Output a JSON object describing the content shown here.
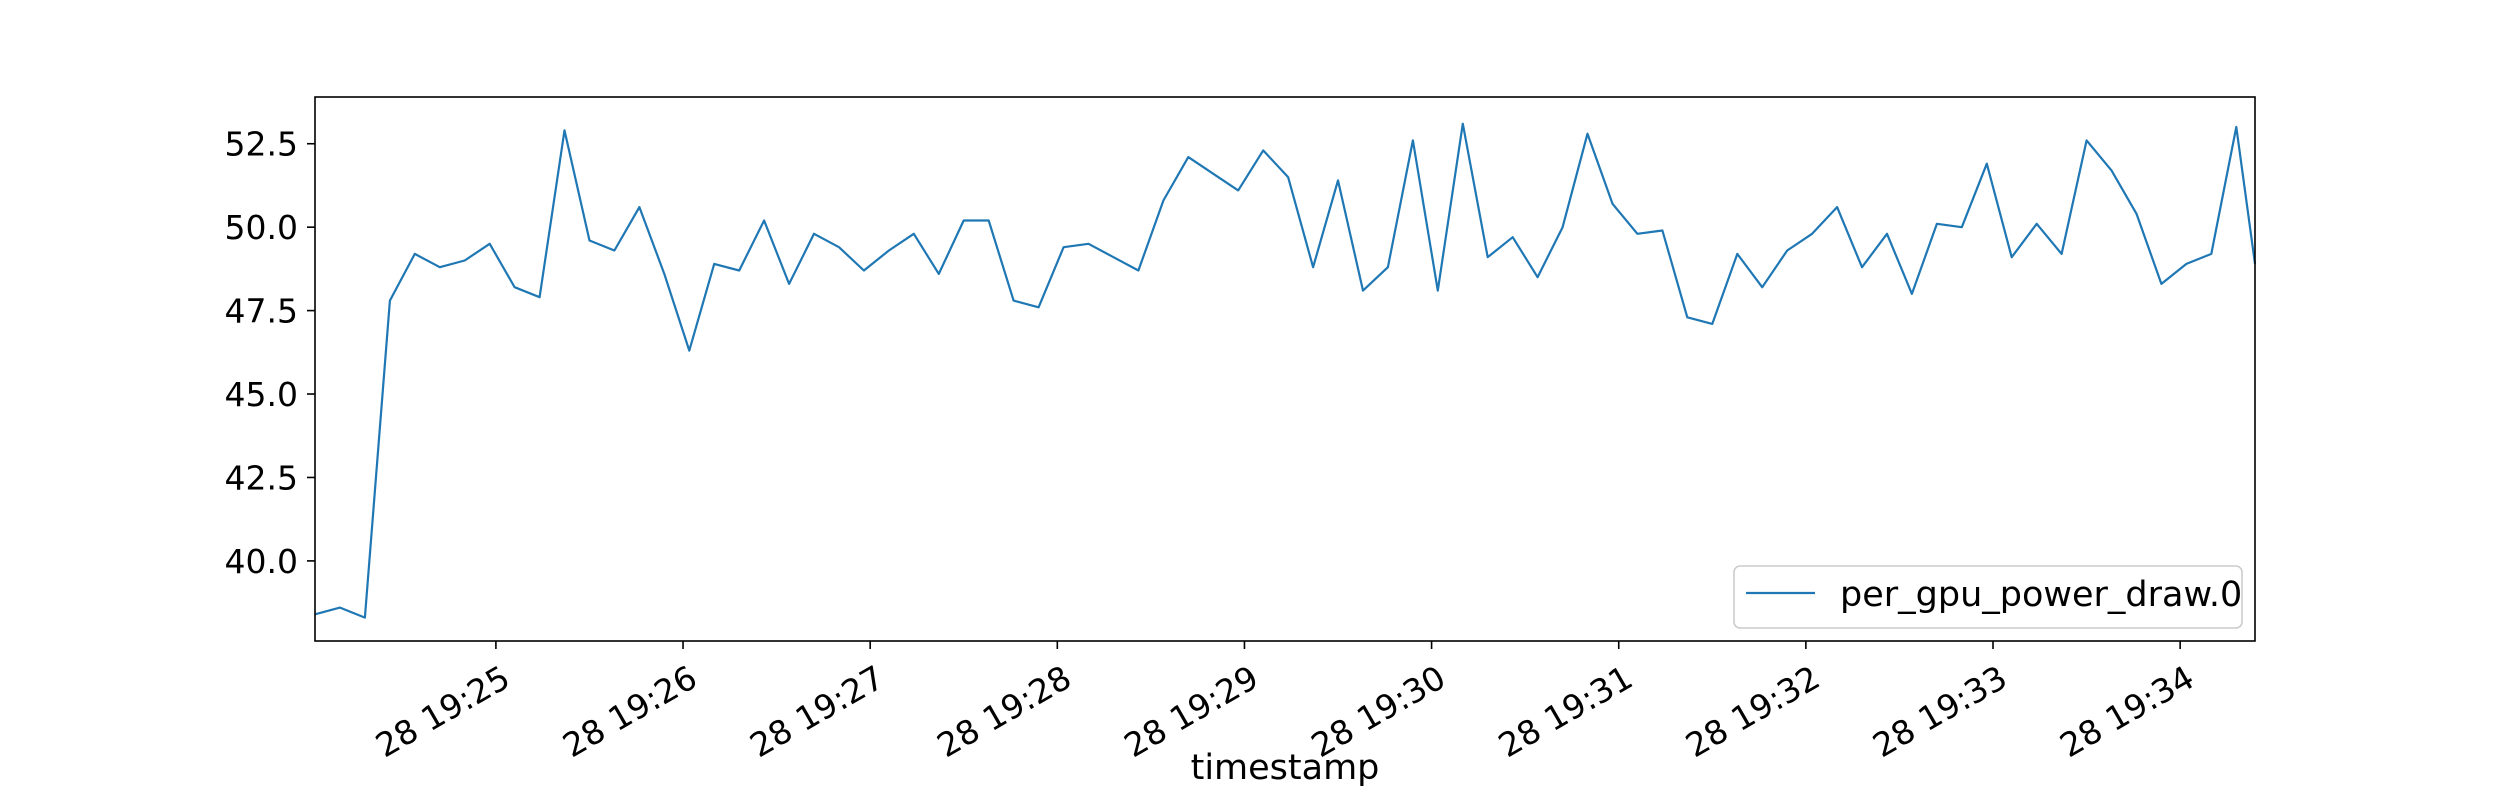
{
  "chart_data": {
    "type": "line",
    "title": "",
    "xlabel": "timestamp",
    "ylabel": "",
    "x_tick_labels": [
      "28 19:25",
      "28 19:26",
      "28 19:27",
      "28 19:28",
      "28 19:29",
      "28 19:30",
      "28 19:31",
      "28 19:32",
      "28 19:33",
      "28 19:34"
    ],
    "y_tick_labels": [
      "40.0",
      "42.5",
      "45.0",
      "47.5",
      "50.0",
      "52.5"
    ],
    "y_ticks": [
      40.0,
      42.5,
      45.0,
      47.5,
      50.0,
      52.5
    ],
    "xlim": [
      "19:24:02",
      "19:34:24"
    ],
    "ylim": [
      37.6,
      53.9
    ],
    "legend": "lower-right",
    "grid": false,
    "series": [
      {
        "name": "per_gpu_power_draw.0",
        "color": "#1f77b4",
        "x": [
          "19:24:02",
          "19:24:10",
          "19:24:18",
          "19:24:26",
          "19:24:34",
          "19:24:42",
          "19:24:50",
          "19:24:58",
          "19:25:06",
          "19:25:14",
          "19:25:22",
          "19:25:30",
          "19:25:38",
          "19:25:46",
          "19:25:54",
          "19:26:02",
          "19:26:10",
          "19:26:18",
          "19:26:26",
          "19:26:34",
          "19:26:42",
          "19:26:50",
          "19:26:58",
          "19:27:06",
          "19:27:14",
          "19:27:22",
          "19:27:30",
          "19:27:38",
          "19:27:46",
          "19:27:54",
          "19:28:02",
          "19:28:10",
          "19:28:18",
          "19:28:26",
          "19:28:34",
          "19:28:42",
          "19:28:50",
          "19:28:58",
          "19:29:06",
          "19:29:14",
          "19:29:22",
          "19:29:30",
          "19:29:38",
          "19:29:46",
          "19:29:54",
          "19:30:02",
          "19:30:10",
          "19:30:18",
          "19:30:26",
          "19:30:34",
          "19:30:42",
          "19:30:50",
          "19:30:58",
          "19:31:06",
          "19:31:14",
          "19:31:22",
          "19:31:30",
          "19:31:38",
          "19:31:46",
          "19:31:54",
          "19:32:02",
          "19:32:10",
          "19:32:18",
          "19:32:26",
          "19:32:34",
          "19:32:42",
          "19:32:50",
          "19:32:58",
          "19:33:06",
          "19:33:14",
          "19:33:22",
          "19:33:30",
          "19:33:38",
          "19:33:46",
          "19:33:54",
          "19:34:02",
          "19:34:10",
          "19:34:18",
          "19:34:24"
        ],
        "y": [
          38.4,
          38.6,
          38.3,
          47.8,
          49.2,
          48.8,
          49.0,
          49.5,
          48.2,
          47.9,
          52.9,
          49.6,
          49.3,
          50.6,
          48.6,
          46.3,
          48.9,
          48.7,
          50.2,
          48.3,
          49.8,
          49.4,
          48.7,
          49.3,
          49.8,
          48.6,
          50.2,
          50.2,
          47.8,
          47.6,
          49.4,
          49.5,
          49.1,
          48.7,
          50.8,
          52.1,
          51.6,
          51.1,
          52.3,
          51.5,
          48.8,
          51.4,
          48.1,
          48.8,
          52.6,
          48.1,
          53.1,
          49.1,
          49.7,
          48.5,
          50.0,
          52.8,
          50.7,
          49.8,
          49.9,
          47.3,
          47.1,
          49.2,
          48.2,
          49.3,
          49.8,
          50.6,
          48.8,
          49.8,
          48.0,
          50.1,
          50.0,
          51.9,
          49.1,
          50.1,
          49.2,
          52.6,
          51.7,
          50.4,
          48.3,
          48.9,
          49.2,
          53.0,
          48.9
        ]
      }
    ]
  }
}
